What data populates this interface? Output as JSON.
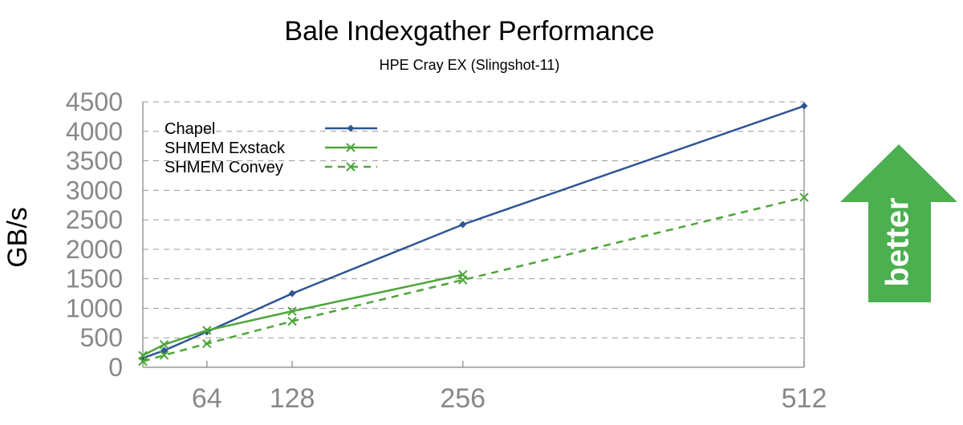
{
  "chart_data": {
    "type": "line",
    "title": "Bale Indexgather Performance",
    "subtitle": "HPE Cray EX (Slingshot-11)",
    "ylabel": "GB/s",
    "xlabel": "",
    "x_ticks": [
      64,
      128,
      256,
      512
    ],
    "ylim": [
      0,
      4500
    ],
    "xlim": [
      16,
      512
    ],
    "y_ticks": [
      0,
      500,
      1000,
      1500,
      2000,
      2500,
      3000,
      3500,
      4000,
      4500
    ],
    "grid": true,
    "legend_position": "top-left",
    "series": [
      {
        "name": "Chapel",
        "color": "#2e5596",
        "line_style": "solid",
        "marker": "diamond",
        "x": [
          16,
          32,
          64,
          128,
          256,
          512
        ],
        "y": [
          155,
          285,
          600,
          1250,
          2420,
          4430
        ]
      },
      {
        "name": "SHMEM Exstack",
        "color": "#4ea53a",
        "line_style": "solid",
        "marker": "x",
        "x": [
          16,
          32,
          64,
          128,
          256,
          512
        ],
        "y": [
          200,
          385,
          625,
          950,
          1570,
          null
        ]
      },
      {
        "name": "SHMEM Convey",
        "color": "#4ea53a",
        "line_style": "dashed",
        "marker": "x",
        "x": [
          16,
          32,
          64,
          128,
          256,
          512
        ],
        "y": [
          100,
          205,
          400,
          780,
          1480,
          2880
        ]
      }
    ]
  },
  "callout": {
    "label": "better",
    "color": "#4caf50"
  }
}
